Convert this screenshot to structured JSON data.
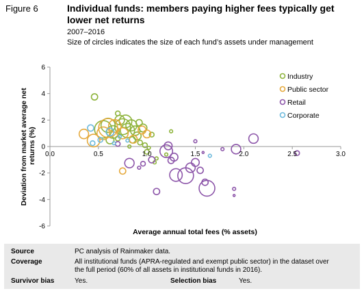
{
  "figure": {
    "label": "Figure 6",
    "title": "Individual funds: members paying higher fees typically get lower net returns",
    "subtitle_period": "2007–2016",
    "subtitle_note": "Size of circles indicates the size of each fund’s assets under management"
  },
  "chart_data": {
    "type": "scatter",
    "title": "Individual funds: members paying higher fees typically get lower net returns",
    "xlabel": "Average annual total fees (% assets)",
    "ylabel": "Deviation from market average net returns (%)",
    "xlim": [
      0,
      3
    ],
    "ylim": [
      -6,
      6
    ],
    "x_ticks": [
      "0.0",
      "0.5",
      "1.0",
      "1.5",
      "2.0",
      "2.5",
      "3.0"
    ],
    "y_ticks": [
      "6",
      "4",
      "2",
      "0",
      "-2",
      "-4",
      "-6"
    ],
    "grid": false,
    "legend_position": "top-right",
    "size_encoding": "relative fund assets under management",
    "series": [
      {
        "name": "Industry",
        "color": "#8db33b",
        "points": [
          {
            "x": 0.46,
            "y": 3.75,
            "size": 4
          },
          {
            "x": 0.55,
            "y": 1.3,
            "size": 11
          },
          {
            "x": 0.6,
            "y": 1.6,
            "size": 9
          },
          {
            "x": 0.65,
            "y": 1.1,
            "size": 8
          },
          {
            "x": 0.7,
            "y": 2.5,
            "size": 3
          },
          {
            "x": 0.72,
            "y": 2.0,
            "size": 6
          },
          {
            "x": 0.75,
            "y": 1.5,
            "size": 10
          },
          {
            "x": 0.78,
            "y": 1.9,
            "size": 8
          },
          {
            "x": 0.8,
            "y": 1.2,
            "size": 9
          },
          {
            "x": 0.84,
            "y": 1.6,
            "size": 7
          },
          {
            "x": 0.88,
            "y": 1.2,
            "size": 6
          },
          {
            "x": 0.92,
            "y": 1.8,
            "size": 4
          },
          {
            "x": 0.96,
            "y": 1.4,
            "size": 5
          },
          {
            "x": 0.9,
            "y": 0.8,
            "size": 5
          },
          {
            "x": 0.85,
            "y": 0.5,
            "size": 4
          },
          {
            "x": 0.93,
            "y": 0.3,
            "size": 3
          },
          {
            "x": 0.98,
            "y": 0.1,
            "size": 3
          },
          {
            "x": 0.82,
            "y": 0.0,
            "size": 2
          },
          {
            "x": 0.7,
            "y": 0.6,
            "size": 3
          },
          {
            "x": 0.62,
            "y": 0.5,
            "size": 5
          },
          {
            "x": 1.05,
            "y": 0.9,
            "size": 3
          },
          {
            "x": 1.0,
            "y": -0.4,
            "size": 3
          },
          {
            "x": 1.08,
            "y": -1.2,
            "size": 2
          },
          {
            "x": 1.1,
            "y": -0.9,
            "size": 2
          },
          {
            "x": 1.2,
            "y": -0.6,
            "size": 2
          },
          {
            "x": 1.25,
            "y": 1.15,
            "size": 2
          },
          {
            "x": 1.02,
            "y": -0.1,
            "size": 2
          }
        ]
      },
      {
        "name": "Public sector",
        "color": "#e5a93c",
        "points": [
          {
            "x": 0.35,
            "y": 0.95,
            "size": 6
          },
          {
            "x": 0.45,
            "y": 0.45,
            "size": 8
          },
          {
            "x": 0.55,
            "y": 1.0,
            "size": 8
          },
          {
            "x": 0.6,
            "y": 1.4,
            "size": 12
          },
          {
            "x": 0.67,
            "y": 1.55,
            "size": 8
          },
          {
            "x": 0.75,
            "y": 1.0,
            "size": 7
          },
          {
            "x": 0.86,
            "y": 0.55,
            "size": 5
          },
          {
            "x": 0.95,
            "y": 1.25,
            "size": 5
          },
          {
            "x": 1.0,
            "y": 0.95,
            "size": 5
          },
          {
            "x": 0.75,
            "y": -1.85,
            "size": 4
          }
        ]
      },
      {
        "name": "Retail",
        "color": "#8c55a9",
        "points": [
          {
            "x": 0.7,
            "y": 0.2,
            "size": 3
          },
          {
            "x": 0.82,
            "y": -1.25,
            "size": 6
          },
          {
            "x": 0.92,
            "y": -1.6,
            "size": 2
          },
          {
            "x": 0.96,
            "y": -1.3,
            "size": 3
          },
          {
            "x": 1.05,
            "y": -1.0,
            "size": 4
          },
          {
            "x": 1.1,
            "y": -3.4,
            "size": 4
          },
          {
            "x": 1.2,
            "y": -0.35,
            "size": 8
          },
          {
            "x": 1.22,
            "y": 0.05,
            "size": 5
          },
          {
            "x": 1.25,
            "y": -1.05,
            "size": 4
          },
          {
            "x": 1.28,
            "y": -0.8,
            "size": 5
          },
          {
            "x": 1.3,
            "y": -2.15,
            "size": 8
          },
          {
            "x": 1.4,
            "y": -2.2,
            "size": 10
          },
          {
            "x": 1.45,
            "y": -1.6,
            "size": 6
          },
          {
            "x": 1.5,
            "y": -1.2,
            "size": 5
          },
          {
            "x": 1.55,
            "y": -1.8,
            "size": 4
          },
          {
            "x": 1.6,
            "y": -2.7,
            "size": 4
          },
          {
            "x": 1.62,
            "y": -3.15,
            "size": 10
          },
          {
            "x": 1.5,
            "y": 0.4,
            "size": 2
          },
          {
            "x": 1.78,
            "y": -0.2,
            "size": 2
          },
          {
            "x": 1.92,
            "y": -0.2,
            "size": 6
          },
          {
            "x": 2.1,
            "y": 0.6,
            "size": 6
          },
          {
            "x": 2.55,
            "y": -0.5,
            "size": 3
          },
          {
            "x": 1.9,
            "y": -3.2,
            "size": 2
          },
          {
            "x": 1.9,
            "y": -3.7,
            "size": 1
          },
          {
            "x": 1.58,
            "y": -0.45,
            "size": 1
          }
        ]
      },
      {
        "name": "Corporate",
        "color": "#6cb9dc",
        "points": [
          {
            "x": 0.42,
            "y": 1.4,
            "size": 4
          },
          {
            "x": 0.44,
            "y": 0.25,
            "size": 3
          },
          {
            "x": 0.52,
            "y": 0.5,
            "size": 3
          },
          {
            "x": 0.62,
            "y": 1.1,
            "size": 5
          },
          {
            "x": 0.66,
            "y": 0.25,
            "size": 2
          },
          {
            "x": 0.72,
            "y": 0.75,
            "size": 2
          },
          {
            "x": 0.8,
            "y": 0.45,
            "size": 2
          },
          {
            "x": 1.65,
            "y": -0.7,
            "size": 2
          }
        ]
      }
    ]
  },
  "notes": {
    "source_label": "Source",
    "source_text": "PC analysis of Rainmaker data.",
    "coverage_label": "Coverage",
    "coverage_line1": "All institutional funds (APRA-regulated and exempt public sector) in the dataset over",
    "coverage_line2": "the full period (60% of all assets in institutional funds in 2016).",
    "survivor_label": "Survivor bias",
    "survivor_text": "Yes.",
    "selection_label": "Selection bias",
    "selection_text": "Yes."
  }
}
